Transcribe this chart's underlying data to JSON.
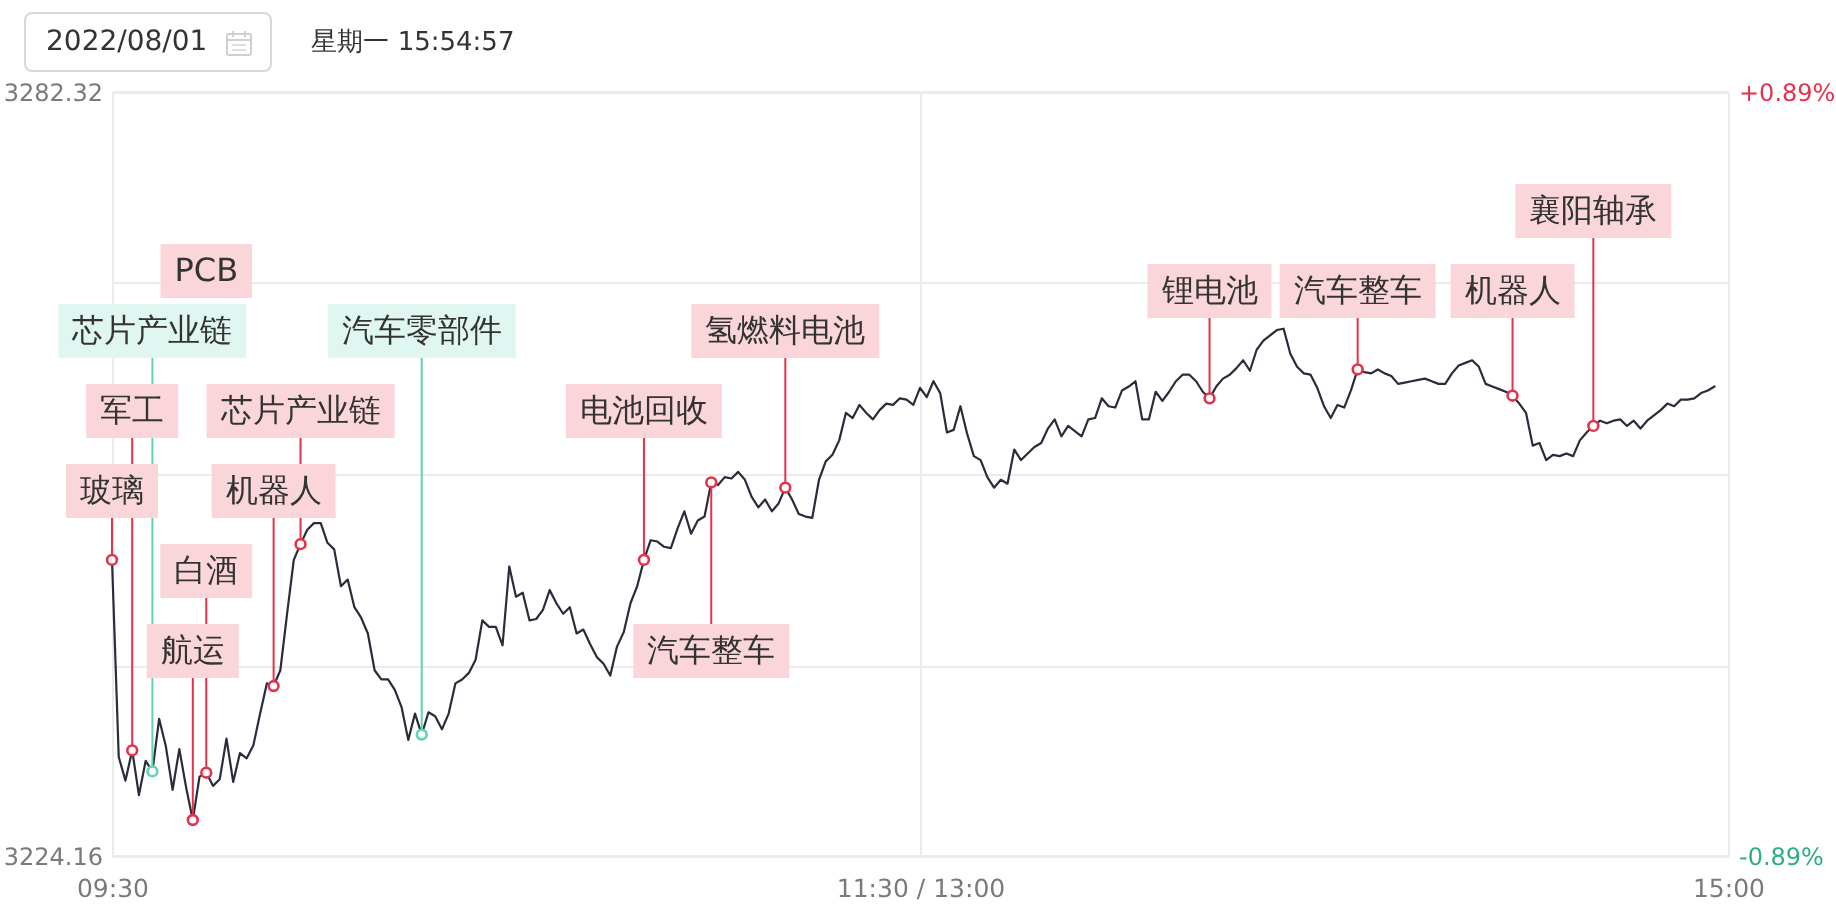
{
  "chart_data": {
    "type": "line",
    "title": "2022/08/01",
    "subtitle": "星期一 15:54:57",
    "categories": [
      "09:30",
      null,
      null,
      null,
      null,
      null,
      null,
      null,
      null,
      null,
      null,
      null,
      null,
      null,
      null,
      null,
      null,
      null,
      null,
      null,
      null,
      null,
      null,
      null,
      null,
      null,
      null,
      null,
      null,
      null,
      null,
      null,
      null,
      null,
      null,
      null,
      null,
      null,
      null,
      null,
      null,
      null,
      null,
      null,
      null,
      null,
      null,
      null,
      null,
      null,
      null,
      null,
      null,
      null,
      null,
      null,
      null,
      null,
      null,
      null,
      null,
      null,
      null,
      null,
      null,
      null,
      null,
      null,
      null,
      null,
      null,
      null,
      null,
      null,
      null,
      null,
      null,
      null,
      null,
      null,
      null,
      null,
      null,
      null,
      null,
      null,
      null,
      null,
      null,
      null,
      null,
      null,
      null,
      null,
      null,
      null,
      null,
      null,
      null,
      null,
      null,
      null,
      null,
      null,
      null,
      null,
      null,
      null,
      null,
      null,
      null,
      null,
      null,
      null,
      null,
      null,
      null,
      null,
      null,
      null,
      "11:30 / 13:00",
      null,
      null,
      null,
      null,
      null,
      null,
      null,
      null,
      null,
      null,
      null,
      null,
      null,
      null,
      null,
      null,
      null,
      null,
      null,
      null,
      null,
      null,
      null,
      null,
      null,
      null,
      null,
      null,
      null,
      null,
      null,
      null,
      null,
      null,
      null,
      null,
      null,
      null,
      null,
      null,
      null,
      null,
      null,
      null,
      null,
      null,
      null,
      null,
      null,
      null,
      null,
      null,
      null,
      null,
      null,
      null,
      null,
      null,
      null,
      null,
      null,
      null,
      null,
      null,
      null,
      null,
      null,
      null,
      null,
      null,
      null,
      null,
      null,
      null,
      null,
      null,
      null,
      null,
      null,
      null,
      null,
      null,
      null,
      null,
      null,
      null,
      null,
      null,
      null,
      null,
      null,
      null,
      null,
      null,
      null,
      null,
      null,
      null,
      null,
      null,
      null,
      null,
      null,
      null,
      null,
      null,
      null,
      null,
      null,
      null,
      null,
      null,
      null,
      null,
      null,
      null,
      null,
      null,
      null,
      "15:00"
    ],
    "series": [
      {
        "color": "#2b2b3b",
        "values": [
          3246.7,
          3231.7,
          3229.9,
          3232.2,
          3228.8,
          3231.4,
          3230.6,
          3234.6,
          3232.5,
          3229.2,
          3232.3,
          3229.4,
          3226.9,
          3230.2,
          3230.5,
          3229.5,
          3230.0,
          3233.1,
          3229.8,
          3232.0,
          3231.6,
          3232.6,
          3235.0,
          3237.3,
          3237.1,
          3238.3,
          3242.6,
          3246.7,
          3247.9,
          3249.0,
          3249.5,
          3249.5,
          3248.0,
          3247.5,
          3244.7,
          3245.2,
          3243.1,
          3242.3,
          3241.1,
          3238.3,
          3237.6,
          3237.6,
          3236.8,
          3235.5,
          3233.0,
          3235.0,
          3233.4,
          3235.1,
          3234.8,
          3233.8,
          3235.0,
          3237.3,
          3237.6,
          3238.1,
          3239.1,
          3242.1,
          3241.6,
          3241.6,
          3240.2,
          3246.2,
          3243.9,
          3244.2,
          3242.1,
          3242.2,
          3242.9,
          3244.4,
          3243.4,
          3242.6,
          3243.1,
          3241.1,
          3241.4,
          3240.3,
          3239.3,
          3238.8,
          3237.9,
          3240.1,
          3241.2,
          3243.4,
          3244.7,
          3246.7,
          3248.2,
          3248.1,
          3247.7,
          3247.6,
          3249.1,
          3250.4,
          3248.7,
          3249.7,
          3250.0,
          3252.6,
          3252.4,
          3253.0,
          3252.9,
          3253.4,
          3252.8,
          3251.5,
          3250.7,
          3251.3,
          3250.4,
          3251.0,
          3252.2,
          3251.3,
          3250.2,
          3250.0,
          3249.9,
          3252.8,
          3254.2,
          3254.7,
          3255.8,
          3257.9,
          3257.5,
          3258.5,
          3257.9,
          3257.4,
          3258.1,
          3258.6,
          3258.5,
          3259.0,
          3258.9,
          3258.5,
          3259.8,
          3259.1,
          3260.3,
          3259.4,
          3256.4,
          3256.6,
          3258.4,
          3256.3,
          3254.6,
          3254.3,
          3253.0,
          3252.2,
          3252.8,
          3252.5,
          3255.1,
          3254.3,
          3254.8,
          3255.3,
          3255.6,
          3256.7,
          3257.4,
          3256.1,
          3256.9,
          3256.5,
          3256.1,
          3257.4,
          3257.5,
          3259.0,
          3258.4,
          3258.3,
          3259.6,
          3259.9,
          3260.3,
          3257.4,
          3257.4,
          3259.5,
          3258.8,
          3259.5,
          3260.3,
          3260.8,
          3260.8,
          3260.3,
          3259.5,
          3259.0,
          3259.9,
          3260.5,
          3260.8,
          3261.3,
          3261.9,
          3261.1,
          3262.7,
          3263.4,
          3263.8,
          3264.2,
          3264.3,
          3262.4,
          3261.4,
          3260.9,
          3260.8,
          3259.8,
          3258.4,
          3257.5,
          3258.5,
          3258.3,
          3259.6,
          3261.2,
          3261.0,
          3260.9,
          3261.2,
          3260.9,
          3260.7,
          3260.1,
          3260.2,
          3260.3,
          3260.4,
          3260.5,
          3260.3,
          3260.1,
          3260.1,
          3260.9,
          3261.5,
          3261.7,
          3261.9,
          3261.4,
          3260.1,
          3259.9,
          3259.7,
          3259.5,
          3259.2,
          3258.6,
          3257.9,
          3255.4,
          3255.6,
          3254.3,
          3254.7,
          3254.6,
          3254.8,
          3254.6,
          3255.8,
          3256.4,
          3256.9,
          3257.3,
          3257.1,
          3257.3,
          3257.4,
          3256.9,
          3257.3,
          3256.7,
          3257.3,
          3257.7,
          3258.1,
          3258.6,
          3258.4,
          3258.9,
          3258.9,
          3259.0,
          3259.4,
          3259.6,
          3259.9,
          null,
          null
        ]
      },
      {
        "type": "scatter",
        "color": "#e5314b",
        "values": [
          3246.7,
          null,
          null,
          3232.2,
          null,
          null,
          null,
          null,
          null,
          null,
          null,
          null,
          3226.9,
          null,
          3230.5,
          null,
          null,
          null,
          null,
          null,
          null,
          null,
          null,
          null,
          3237.1,
          null,
          null,
          null,
          3247.9,
          null,
          null,
          null,
          null,
          null,
          null,
          null,
          null,
          null,
          null,
          null,
          null,
          null,
          null,
          null,
          null,
          null,
          null,
          null,
          null,
          null,
          null,
          null,
          null,
          null,
          null,
          null,
          null,
          null,
          null,
          null,
          null,
          null,
          null,
          null,
          null,
          null,
          null,
          null,
          null,
          null,
          null,
          null,
          null,
          null,
          null,
          null,
          null,
          null,
          null,
          3246.7,
          null,
          null,
          null,
          null,
          null,
          null,
          null,
          null,
          null,
          3252.6,
          null,
          null,
          null,
          null,
          null,
          null,
          null,
          null,
          null,
          null,
          3252.2,
          null,
          null,
          null,
          null,
          null,
          null,
          null,
          null,
          null,
          null,
          null,
          null,
          null,
          null,
          null,
          null,
          null,
          null,
          null,
          null,
          null,
          null,
          null,
          null,
          null,
          null,
          null,
          null,
          null,
          null,
          null,
          null,
          null,
          null,
          null,
          null,
          null,
          null,
          null,
          null,
          null,
          null,
          null,
          null,
          null,
          null,
          null,
          null,
          null,
          null,
          null,
          null,
          null,
          null,
          null,
          null,
          null,
          null,
          null,
          null,
          null,
          null,
          3259.0,
          null,
          null,
          null,
          null,
          null,
          null,
          null,
          null,
          null,
          null,
          null,
          null,
          null,
          null,
          null,
          null,
          null,
          null,
          null,
          null,
          null,
          3261.2,
          null,
          null,
          null,
          null,
          null,
          null,
          null,
          null,
          null,
          null,
          null,
          null,
          null,
          null,
          null,
          null,
          null,
          null,
          null,
          null,
          null,
          null,
          3259.2,
          null,
          null,
          null,
          null,
          null,
          null,
          null,
          null,
          null,
          null,
          null,
          3256.9,
          null,
          null,
          null,
          null,
          null,
          null,
          null,
          null,
          null,
          null,
          null,
          null,
          null,
          null,
          null,
          null,
          null,
          null,
          null,
          null
        ]
      },
      {
        "type": "scatter",
        "color": "#62d3b2",
        "values": [
          null,
          null,
          null,
          null,
          null,
          null,
          3230.6,
          null,
          null,
          null,
          null,
          null,
          null,
          null,
          null,
          null,
          null,
          null,
          null,
          null,
          null,
          null,
          null,
          null,
          null,
          null,
          null,
          null,
          null,
          null,
          null,
          null,
          null,
          null,
          null,
          null,
          null,
          null,
          null,
          null,
          null,
          null,
          null,
          null,
          null,
          null,
          3233.4,
          null,
          null,
          null,
          null,
          null,
          null,
          null,
          null,
          null,
          null,
          null,
          null,
          null,
          null,
          null,
          null,
          null,
          null,
          null,
          null,
          null,
          null,
          null,
          null,
          null,
          null,
          null,
          null,
          null,
          null,
          null,
          null,
          null,
          null,
          null,
          null,
          null,
          null,
          null,
          null,
          null,
          null,
          null,
          null,
          null,
          null,
          null,
          null,
          null,
          null,
          null,
          null,
          null,
          null,
          null,
          null,
          null,
          null,
          null,
          null,
          null,
          null,
          null,
          null,
          null,
          null,
          null,
          null,
          null,
          null,
          null,
          null,
          null,
          null,
          null,
          null,
          null,
          null,
          null,
          null,
          null,
          null,
          null,
          null,
          null,
          null,
          null,
          null,
          null,
          null,
          null,
          null,
          null,
          null,
          null,
          null,
          null,
          null,
          null,
          null,
          null,
          null,
          null,
          null,
          null,
          null,
          null,
          null,
          null,
          null,
          null,
          null,
          null,
          null,
          null,
          null,
          null,
          null,
          null,
          null,
          null,
          null,
          null,
          null,
          null,
          null,
          null,
          null,
          null,
          null,
          null,
          null,
          null,
          null,
          null,
          null,
          null,
          null,
          null,
          null,
          null,
          null,
          null,
          null,
          null,
          null,
          null,
          null,
          null,
          null,
          null,
          null,
          null,
          null,
          null,
          null,
          null,
          null,
          null,
          null,
          null,
          null,
          null,
          null,
          null,
          null,
          null,
          null,
          null,
          null,
          null,
          null,
          null,
          null,
          null,
          null,
          null,
          null,
          null,
          null,
          null,
          null,
          null,
          null,
          null,
          null,
          null,
          null,
          null,
          null,
          null,
          null,
          null,
          null
        ]
      }
    ],
    "ylim": [
      3224.16,
      3282.32
    ],
    "yticks": [
      3224.16,
      {
        "value": 3238.7,
        "label": null
      },
      {
        "value": 3253.24,
        "label": null
      },
      {
        "value": 3267.78,
        "label": null
      },
      3282.32
    ],
    "y2lim": [
      -0.89,
      0.89
    ],
    "y2ticks": [
      {
        "value": -0.89,
        "label": "-0.89%"
      },
      {
        "value": 0.89,
        "label": "+0.89%"
      }
    ],
    "grid": true,
    "annotations": [
      {
        "text": "玻璃",
        "y": 3246.7
      },
      {
        "text": "军工",
        "y": 3232.2
      },
      {
        "text": "芯片产业链",
        "y": 3230.6
      },
      {
        "text": "航运",
        "y": 3226.9
      },
      {
        "text": "白酒",
        "y": 3230.5
      },
      "PCB",
      {
        "text": "机器人",
        "y": 3237.1
      },
      {
        "text": "芯片产业链",
        "y": 3247.9
      },
      {
        "text": "汽车零部件",
        "y": 3233.4
      },
      {
        "text": "电池回收",
        "y": 3246.7
      },
      {
        "text": "汽车整车",
        "y": 3252.6
      },
      {
        "text": "氢燃料电池",
        "y": 3252.2
      },
      {
        "text": "锂电池",
        "y": 3259.0
      },
      {
        "text": "汽车整车",
        "y": 3261.2
      },
      {
        "text": "机器人",
        "y": 3259.2
      },
      {
        "text": "襄阳轴承",
        "y": 3256.9
      }
    ]
  }
}
